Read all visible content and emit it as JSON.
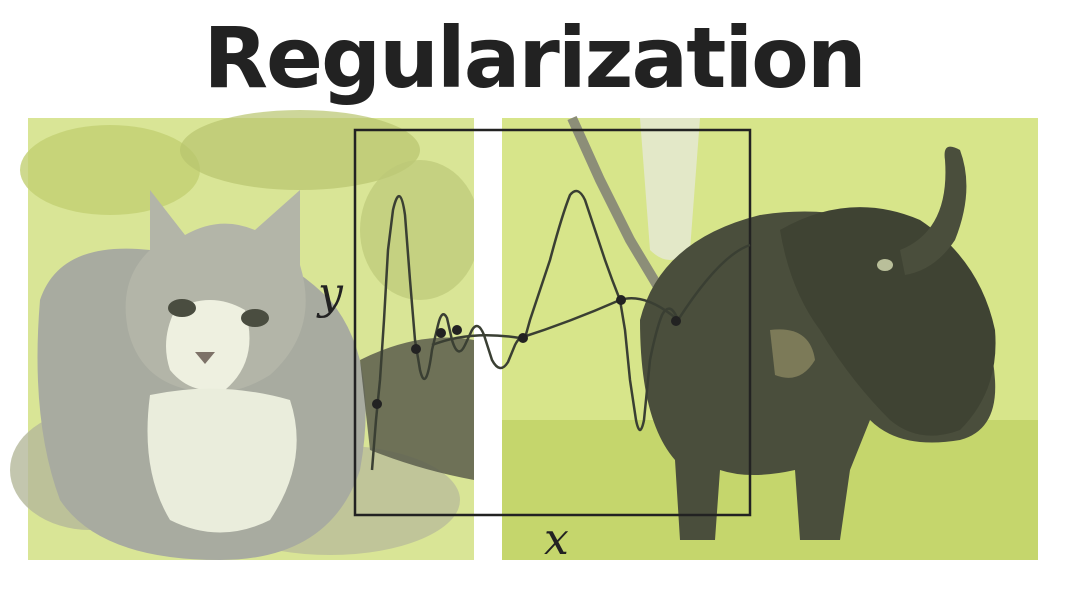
{
  "title": "Regularization",
  "axes": {
    "x_label": "x",
    "y_label": "y"
  },
  "images": [
    {
      "subject": "cat",
      "icon": "cat-photo"
    },
    {
      "subject": "dog",
      "icon": "dog-photo"
    }
  ],
  "colors": {
    "photo_tint": "#dfe89a",
    "grass": "#c9dc6a",
    "foliage": "#aebc6a",
    "fur_grey": "#a9a9a0",
    "fur_white": "#e8ecd8",
    "dog_dark": "#4a4e3a",
    "ink": "#222222",
    "curve": "#3a3f33"
  }
}
